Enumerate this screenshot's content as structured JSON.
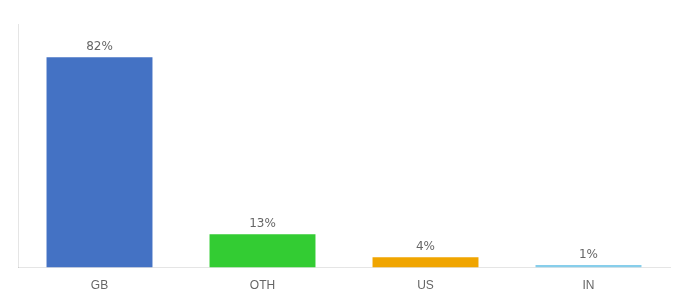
{
  "chart_data": {
    "type": "bar",
    "categories": [
      "GB",
      "OTH",
      "US",
      "IN"
    ],
    "values": [
      82,
      13,
      4,
      1
    ],
    "value_labels": [
      "82%",
      "13%",
      "4%",
      "1%"
    ],
    "colors": [
      "#4472c4",
      "#33cc33",
      "#f0a500",
      "#87ceeb"
    ],
    "ylim": [
      0,
      95
    ],
    "grid": false,
    "data_labels": true,
    "tick_labels": "x"
  }
}
